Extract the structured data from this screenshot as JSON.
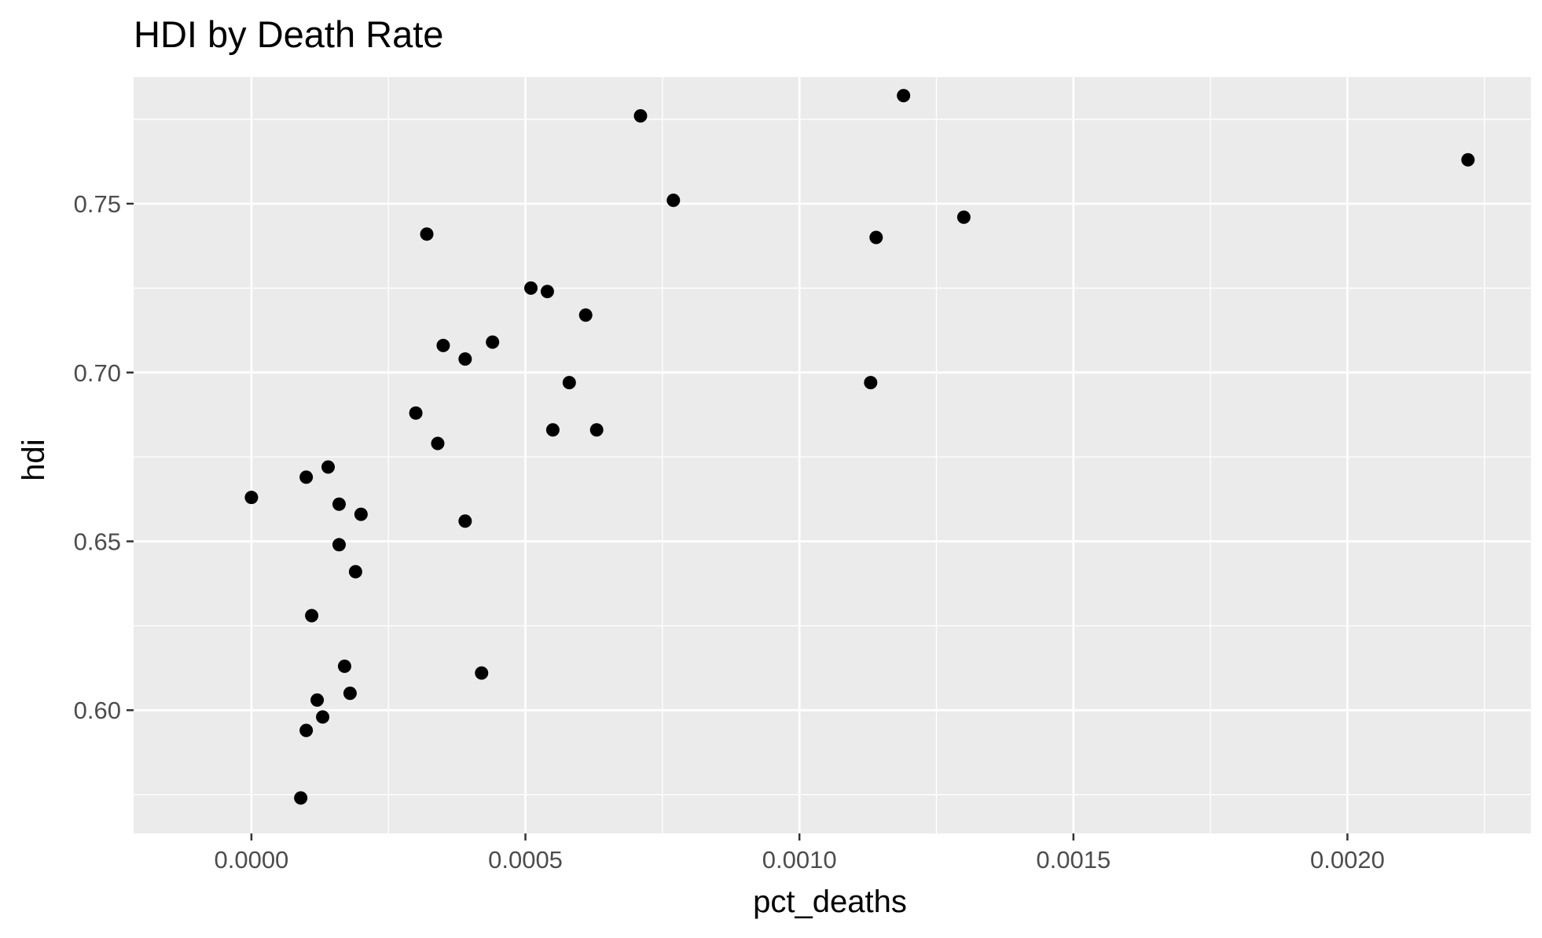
{
  "chart_data": {
    "type": "scatter",
    "title": "HDI by Death Rate",
    "xlabel": "pct_deaths",
    "ylabel": "hdi",
    "xlim": [
      -0.000215,
      0.002335
    ],
    "ylim": [
      0.5635,
      0.7875
    ],
    "x_ticks": [
      0.0,
      0.0005,
      0.001,
      0.0015,
      0.002
    ],
    "x_tick_labels": [
      "0.0000",
      "0.0005",
      "0.0010",
      "0.0015",
      "0.0020"
    ],
    "y_ticks": [
      0.6,
      0.65,
      0.7,
      0.75
    ],
    "y_tick_labels": [
      "0.60",
      "0.65",
      "0.70",
      "0.75"
    ],
    "grid": true,
    "background": "#ebebeb",
    "point_color": "#000000",
    "points": [
      {
        "x": 0.0,
        "y": 0.663
      },
      {
        "x": 0.0001,
        "y": 0.669
      },
      {
        "x": 0.00014,
        "y": 0.672
      },
      {
        "x": 0.00016,
        "y": 0.661
      },
      {
        "x": 0.0002,
        "y": 0.658
      },
      {
        "x": 0.00016,
        "y": 0.649
      },
      {
        "x": 0.00019,
        "y": 0.641
      },
      {
        "x": 0.00011,
        "y": 0.628
      },
      {
        "x": 0.00017,
        "y": 0.613
      },
      {
        "x": 0.00018,
        "y": 0.605
      },
      {
        "x": 0.00012,
        "y": 0.603
      },
      {
        "x": 0.00013,
        "y": 0.598
      },
      {
        "x": 0.0001,
        "y": 0.594
      },
      {
        "x": 9e-05,
        "y": 0.574
      },
      {
        "x": 0.0003,
        "y": 0.688
      },
      {
        "x": 0.00034,
        "y": 0.679
      },
      {
        "x": 0.00032,
        "y": 0.741
      },
      {
        "x": 0.00035,
        "y": 0.708
      },
      {
        "x": 0.00039,
        "y": 0.704
      },
      {
        "x": 0.00044,
        "y": 0.709
      },
      {
        "x": 0.00039,
        "y": 0.656
      },
      {
        "x": 0.00042,
        "y": 0.611
      },
      {
        "x": 0.00051,
        "y": 0.725
      },
      {
        "x": 0.00054,
        "y": 0.724
      },
      {
        "x": 0.00058,
        "y": 0.697
      },
      {
        "x": 0.00055,
        "y": 0.683
      },
      {
        "x": 0.00063,
        "y": 0.683
      },
      {
        "x": 0.00061,
        "y": 0.717
      },
      {
        "x": 0.00071,
        "y": 0.776
      },
      {
        "x": 0.00077,
        "y": 0.751
      },
      {
        "x": 0.00114,
        "y": 0.74
      },
      {
        "x": 0.00113,
        "y": 0.697
      },
      {
        "x": 0.00119,
        "y": 0.782
      },
      {
        "x": 0.0013,
        "y": 0.746
      },
      {
        "x": 0.00222,
        "y": 0.763
      }
    ]
  }
}
